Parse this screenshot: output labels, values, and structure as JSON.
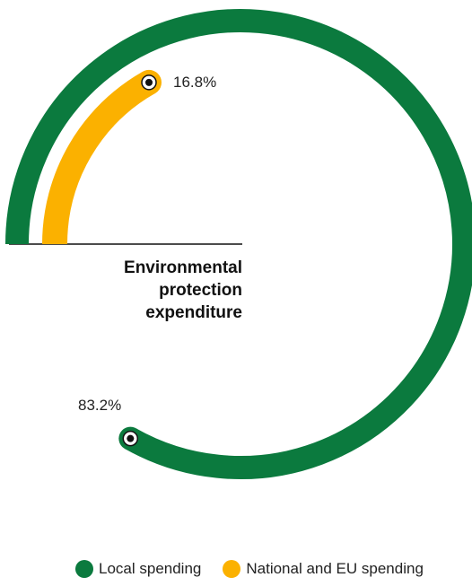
{
  "chart_data": {
    "type": "radial-bar",
    "title_lines": [
      "Environmental",
      "protection",
      "expenditure"
    ],
    "unit": "%",
    "series": [
      {
        "name": "Local spending",
        "value": 83.2,
        "label": "83.2%",
        "color": "#0b7a3e"
      },
      {
        "name": "National and EU spending",
        "value": 16.8,
        "label": "16.8%",
        "color": "#fbb100"
      }
    ]
  },
  "legend": {
    "items": [
      {
        "label": "Local spending",
        "color": "#0b7a3e"
      },
      {
        "label": "National and EU spending",
        "color": "#fbb100"
      }
    ]
  }
}
